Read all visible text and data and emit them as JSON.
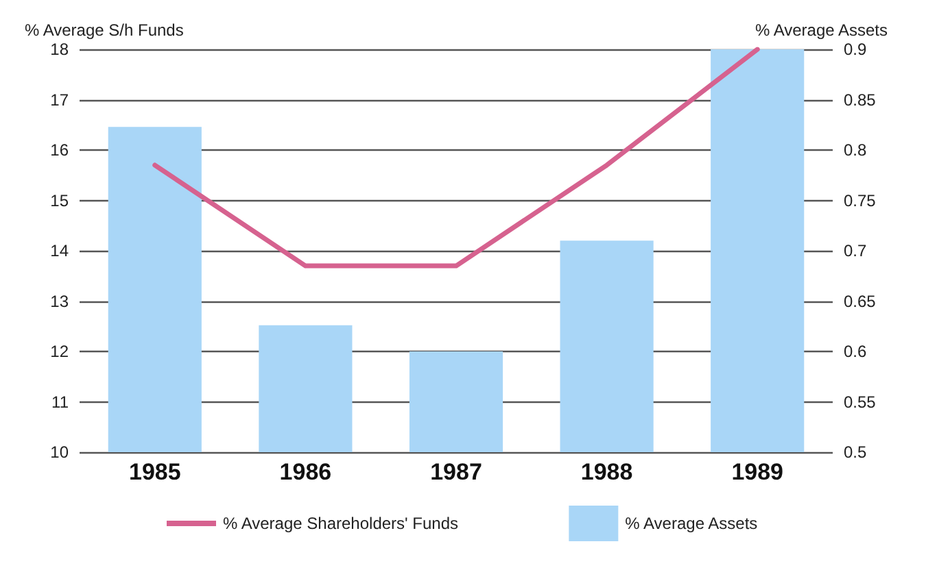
{
  "chart_data": {
    "type": "bar",
    "categories": [
      "1985",
      "1986",
      "1987",
      "1988",
      "1989"
    ],
    "ylabel": "% Average S/h Funds",
    "y2label": "% Average Assets",
    "series": [
      {
        "name": "% Average Shareholders' Funds",
        "type": "line",
        "color": "#d6628f",
        "values": [
          15.7,
          13.7,
          13.7,
          15.7,
          18.0
        ]
      },
      {
        "name": "% Average Assets",
        "axis": "y2",
        "color": "#a9d6f7",
        "values": [
          0.823,
          0.626,
          0.6,
          0.71,
          0.9
        ]
      }
    ],
    "ylim": [
      10,
      18
    ],
    "yticks": [
      10,
      11,
      12,
      13,
      14,
      15,
      16,
      17,
      18
    ],
    "y2lim": [
      0.5,
      0.9
    ],
    "y2ticks": [
      0.5,
      0.55,
      0.6,
      0.65,
      0.7,
      0.75,
      0.8,
      0.85,
      0.9
    ],
    "grid": "y",
    "legend": "bottom",
    "marker": "none",
    "line_style": "solid"
  }
}
